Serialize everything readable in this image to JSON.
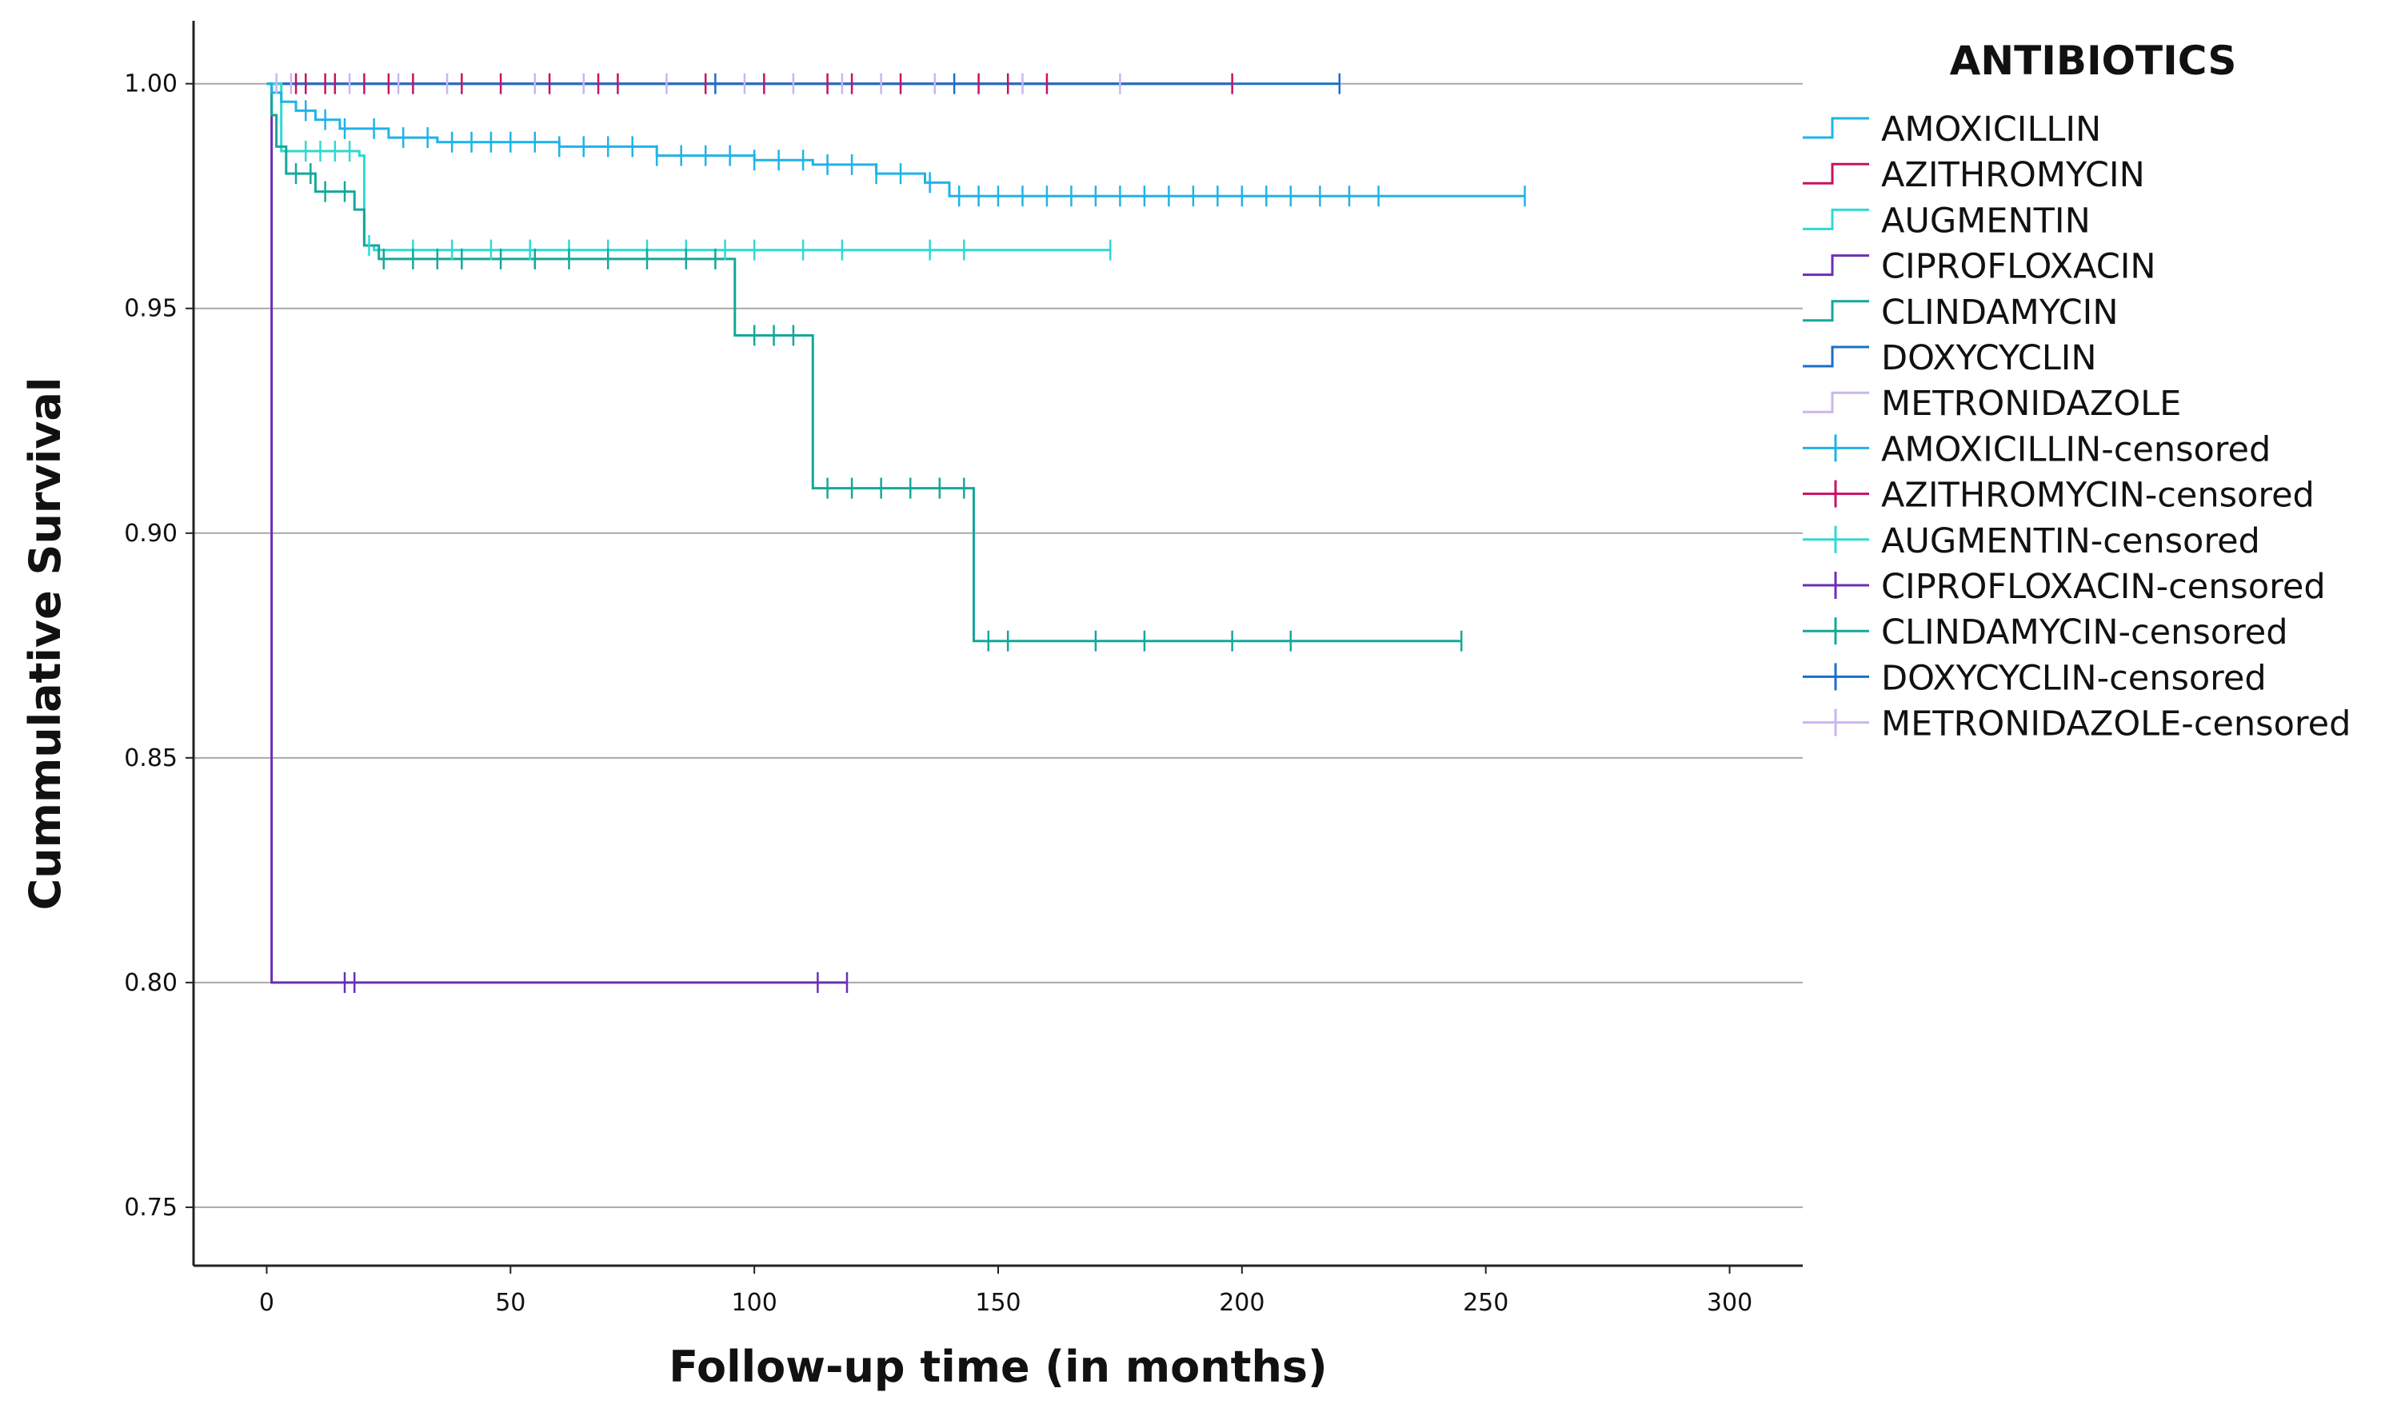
{
  "chart_data": {
    "type": "line",
    "subtype": "kaplan-meier step curves with censoring marks",
    "xlabel": "Follow-up time (in months)",
    "ylabel": "Cummulative Survival",
    "xlim": [
      -15,
      315
    ],
    "ylim": [
      0.737,
      1.014
    ],
    "xticks": [
      "0",
      "50",
      "100",
      "150",
      "200",
      "250",
      "300"
    ],
    "yticks": [
      "0.75",
      "0.80",
      "0.85",
      "0.90",
      "0.95",
      "1.00"
    ],
    "grid": "horizontal",
    "legend": {
      "title": "ANTIBIOTICS",
      "position": "right",
      "entries": [
        "AMOXICILLIN",
        "AZITHROMYCIN",
        "AUGMENTIN",
        "CIPROFLOXACIN",
        "CLINDAMYCIN",
        "DOXYCYCLIN",
        "METRONIDAZOLE",
        "AMOXICILLIN-censored",
        "AZITHROMYCIN-censored",
        "AUGMENTIN-censored",
        "CIPROFLOXACIN-censored",
        "CLINDAMYCIN-censored",
        "DOXYCYCLIN-censored",
        "METRONIDAZOLE-censored"
      ]
    },
    "series": [
      {
        "name": "AMOXICILLIN",
        "color": "#1fb3e8",
        "steps": [
          [
            0,
            1.0
          ],
          [
            1,
            0.998
          ],
          [
            3,
            0.996
          ],
          [
            6,
            0.994
          ],
          [
            10,
            0.992
          ],
          [
            15,
            0.99
          ],
          [
            25,
            0.988
          ],
          [
            35,
            0.987
          ],
          [
            60,
            0.986
          ],
          [
            80,
            0.984
          ],
          [
            100,
            0.983
          ],
          [
            112,
            0.982
          ],
          [
            125,
            0.98
          ],
          [
            135,
            0.978
          ],
          [
            140,
            0.975
          ],
          [
            258,
            0.975
          ]
        ],
        "censored": [
          8,
          12,
          16,
          22,
          28,
          33,
          38,
          42,
          46,
          50,
          55,
          60,
          65,
          70,
          75,
          80,
          85,
          90,
          95,
          100,
          105,
          110,
          115,
          120,
          125,
          130,
          136,
          142,
          146,
          150,
          155,
          160,
          165,
          170,
          175,
          180,
          185,
          190,
          195,
          200,
          205,
          210,
          216,
          222,
          228,
          258
        ]
      },
      {
        "name": "AZITHROMYCIN",
        "color": "#c7135f",
        "steps": [
          [
            0,
            1.0
          ],
          [
            198,
            1.0
          ]
        ],
        "censored": [
          6,
          8,
          12,
          14,
          20,
          25,
          30,
          40,
          48,
          58,
          68,
          72,
          90,
          102,
          115,
          120,
          130,
          146,
          152,
          160,
          198
        ]
      },
      {
        "name": "AUGMENTIN",
        "color": "#30d9d2",
        "steps": [
          [
            0,
            1.0
          ],
          [
            3,
            0.985
          ],
          [
            19,
            0.984
          ],
          [
            20,
            0.964
          ],
          [
            22,
            0.963
          ],
          [
            173,
            0.963
          ]
        ],
        "censored": [
          8,
          11,
          14,
          17,
          21,
          30,
          38,
          46,
          54,
          62,
          70,
          78,
          86,
          94,
          100,
          110,
          118,
          136,
          143,
          173
        ]
      },
      {
        "name": "CIPROFLOXACIN",
        "color": "#6b2fb5",
        "steps": [
          [
            0,
            1.0
          ],
          [
            1,
            1.0
          ],
          [
            1,
            0.8
          ],
          [
            119,
            0.8
          ]
        ],
        "censored": [
          16,
          18,
          113,
          119
        ]
      },
      {
        "name": "CLINDAMYCIN",
        "color": "#14a89a",
        "steps": [
          [
            0,
            1.0
          ],
          [
            1,
            0.993
          ],
          [
            2,
            0.986
          ],
          [
            4,
            0.98
          ],
          [
            10,
            0.976
          ],
          [
            18,
            0.972
          ],
          [
            20,
            0.964
          ],
          [
            23,
            0.961
          ],
          [
            96,
            0.961
          ],
          [
            96,
            0.944
          ],
          [
            112,
            0.944
          ],
          [
            112,
            0.91
          ],
          [
            145,
            0.91
          ],
          [
            145,
            0.876
          ],
          [
            245,
            0.876
          ]
        ],
        "censored": [
          6,
          9,
          12,
          16,
          24,
          30,
          35,
          40,
          48,
          55,
          62,
          70,
          78,
          86,
          92,
          100,
          104,
          108,
          115,
          120,
          126,
          132,
          138,
          143,
          148,
          152,
          170,
          180,
          198,
          210,
          245
        ]
      },
      {
        "name": "DOXYCYCLIN",
        "color": "#1a6fc9",
        "steps": [
          [
            0,
            1.0
          ],
          [
            220,
            1.0
          ]
        ],
        "censored": [
          92,
          141,
          220
        ]
      },
      {
        "name": "METRONIDAZOLE",
        "color": "#c9b6ef",
        "steps": [
          [
            0,
            1.0
          ],
          [
            175,
            1.0
          ]
        ],
        "censored": [
          2,
          5,
          17,
          27,
          37,
          55,
          65,
          82,
          98,
          108,
          118,
          126,
          137,
          155,
          175
        ]
      }
    ]
  }
}
